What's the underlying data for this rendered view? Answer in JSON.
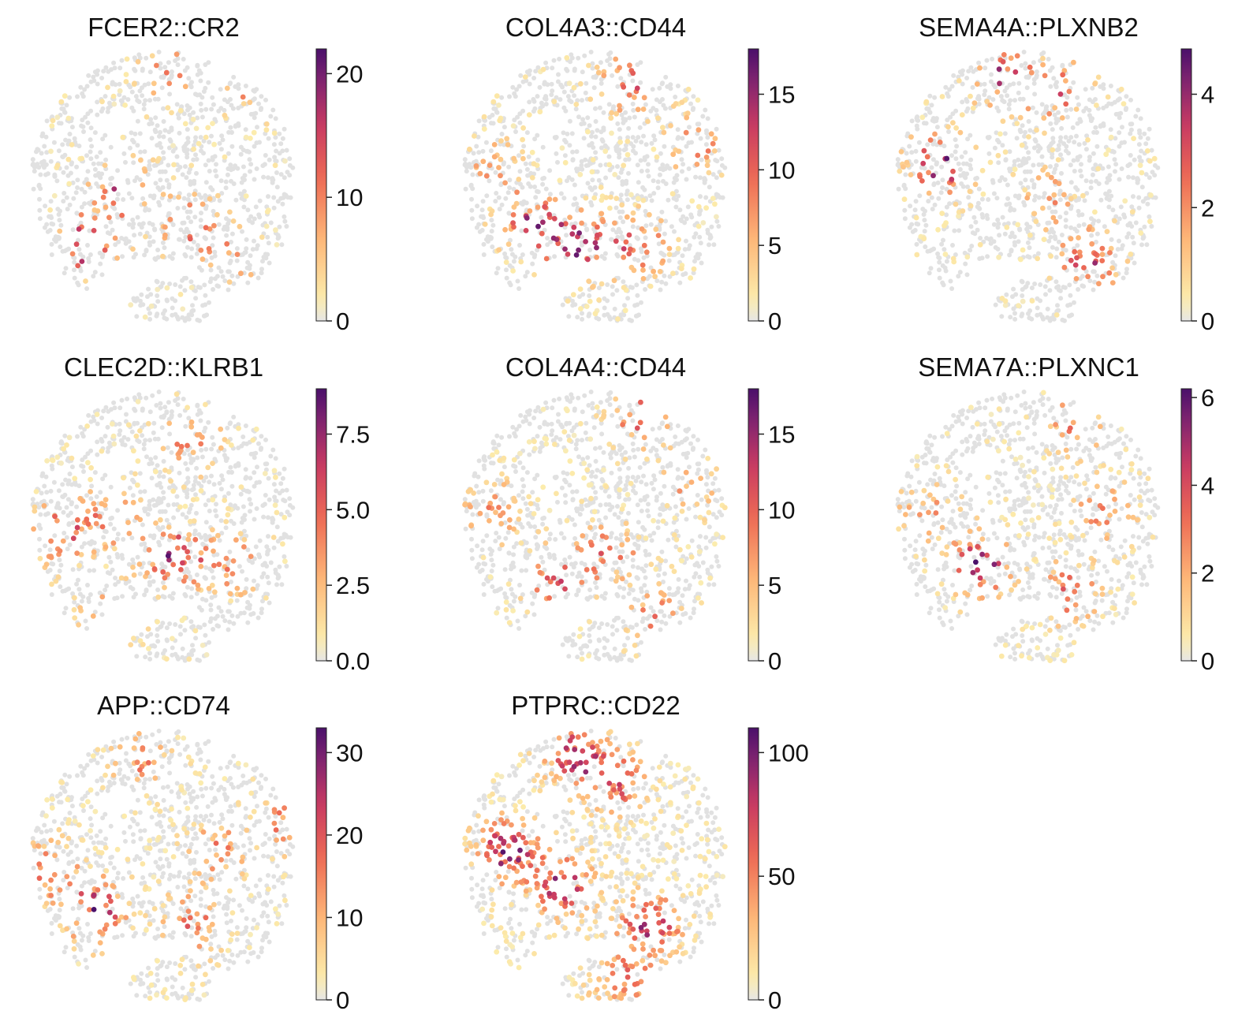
{
  "figure": {
    "background": "#ffffff",
    "background_spot_color": "#e1e1e1"
  },
  "chart_data": [
    {
      "type": "scatter",
      "title": "FCER2::CR2",
      "color_scale": {
        "cmap": "magma_r",
        "vmin": 0,
        "vmax": 22,
        "ticks": [
          0,
          10,
          20
        ],
        "tick_labels": [
          "0",
          "10",
          "20"
        ]
      },
      "hotspots": [
        {
          "x": -0.55,
          "y": -0.45,
          "weight": 1.0
        },
        {
          "x": -0.3,
          "y": -0.05,
          "weight": 0.8
        },
        {
          "x": 0.2,
          "y": -0.3,
          "weight": 0.7
        },
        {
          "x": 0.05,
          "y": 0.85,
          "weight": 0.5
        },
        {
          "x": 0.65,
          "y": 0.75,
          "weight": 0.5
        },
        {
          "x": 0.5,
          "y": -0.55,
          "weight": 0.4
        }
      ],
      "density": 0.3,
      "seed": 11
    },
    {
      "type": "scatter",
      "title": "COL4A3::CD44",
      "color_scale": {
        "cmap": "magma_r",
        "vmin": 0,
        "vmax": 18,
        "ticks": [
          0,
          5,
          10,
          15
        ],
        "tick_labels": [
          "0",
          "5",
          "10",
          "15"
        ]
      },
      "hotspots": [
        {
          "x": -0.45,
          "y": -0.3,
          "weight": 0.9
        },
        {
          "x": -0.1,
          "y": -0.45,
          "weight": 1.0
        },
        {
          "x": 0.3,
          "y": -0.45,
          "weight": 0.7
        },
        {
          "x": 0.25,
          "y": 0.75,
          "weight": 0.7
        },
        {
          "x": 0.75,
          "y": 0.3,
          "weight": 0.5
        },
        {
          "x": -0.75,
          "y": 0.1,
          "weight": 0.5
        }
      ],
      "density": 0.45,
      "seed": 23
    },
    {
      "type": "scatter",
      "title": "SEMA4A::PLXNB2",
      "color_scale": {
        "cmap": "magma_r",
        "vmin": 0,
        "vmax": 4.8,
        "ticks": [
          0,
          2,
          4
        ],
        "tick_labels": [
          "0",
          "2",
          "4"
        ]
      },
      "hotspots": [
        {
          "x": -0.65,
          "y": 0.15,
          "weight": 1.0
        },
        {
          "x": -0.2,
          "y": 0.8,
          "weight": 0.8
        },
        {
          "x": 0.2,
          "y": 0.7,
          "weight": 0.7
        },
        {
          "x": 0.45,
          "y": -0.55,
          "weight": 0.8
        },
        {
          "x": 0.15,
          "y": -0.1,
          "weight": 0.4
        }
      ],
      "density": 0.35,
      "seed": 37
    },
    {
      "type": "scatter",
      "title": "CLEC2D::KLRB1",
      "color_scale": {
        "cmap": "magma_r",
        "vmin": 0,
        "vmax": 9,
        "ticks": [
          0,
          2.5,
          5,
          7.5
        ],
        "tick_labels": [
          "0.0",
          "2.5",
          "5.0",
          "7.5"
        ]
      },
      "hotspots": [
        {
          "x": 0.1,
          "y": -0.25,
          "weight": 1.0
        },
        {
          "x": -0.75,
          "y": -0.05,
          "weight": 0.7
        },
        {
          "x": -0.35,
          "y": 0.05,
          "weight": 0.6
        },
        {
          "x": 0.2,
          "y": 0.6,
          "weight": 0.5
        },
        {
          "x": 0.55,
          "y": -0.3,
          "weight": 0.5
        },
        {
          "x": -0.4,
          "y": -0.65,
          "weight": 0.4
        }
      ],
      "density": 0.45,
      "seed": 41
    },
    {
      "type": "scatter",
      "title": "COL4A4::CD44",
      "color_scale": {
        "cmap": "magma_r",
        "vmin": 0,
        "vmax": 18,
        "ticks": [
          0,
          5,
          10,
          15
        ],
        "tick_labels": [
          "0",
          "5",
          "10",
          "15"
        ]
      },
      "hotspots": [
        {
          "x": -0.3,
          "y": -0.4,
          "weight": 0.8
        },
        {
          "x": 0.35,
          "y": 0.8,
          "weight": 0.7
        },
        {
          "x": 0.1,
          "y": -0.2,
          "weight": 0.6
        },
        {
          "x": -0.75,
          "y": 0.1,
          "weight": 0.5
        },
        {
          "x": 0.45,
          "y": -0.65,
          "weight": 0.5
        },
        {
          "x": 0.7,
          "y": 0.3,
          "weight": 0.4
        }
      ],
      "density": 0.45,
      "seed": 53
    },
    {
      "type": "scatter",
      "title": "SEMA7A::PLXNC1",
      "color_scale": {
        "cmap": "magma_r",
        "vmin": 0,
        "vmax": 6.2,
        "ticks": [
          0,
          2,
          4,
          6
        ],
        "tick_labels": [
          "0",
          "2",
          "4",
          "6"
        ]
      },
      "hotspots": [
        {
          "x": -0.35,
          "y": -0.3,
          "weight": 1.0
        },
        {
          "x": 0.3,
          "y": -0.5,
          "weight": 0.6
        },
        {
          "x": 0.35,
          "y": 0.75,
          "weight": 0.5
        },
        {
          "x": 0.55,
          "y": 0.1,
          "weight": 0.5
        },
        {
          "x": -0.75,
          "y": 0.1,
          "weight": 0.4
        }
      ],
      "density": 0.4,
      "seed": 67
    },
    {
      "type": "scatter",
      "title": "APP::CD74",
      "color_scale": {
        "cmap": "magma_r",
        "vmin": 0,
        "vmax": 33,
        "ticks": [
          0,
          10,
          20,
          30
        ],
        "tick_labels": [
          "0",
          "10",
          "20",
          "30"
        ]
      },
      "hotspots": [
        {
          "x": -0.5,
          "y": -0.35,
          "weight": 1.0
        },
        {
          "x": -0.85,
          "y": -0.05,
          "weight": 0.6
        },
        {
          "x": 0.2,
          "y": -0.45,
          "weight": 0.6
        },
        {
          "x": 0.4,
          "y": 0.1,
          "weight": 0.5
        },
        {
          "x": -0.15,
          "y": 0.75,
          "weight": 0.5
        },
        {
          "x": 0.9,
          "y": 0.3,
          "weight": 0.5
        }
      ],
      "density": 0.55,
      "seed": 79
    },
    {
      "type": "scatter",
      "title": "PTPRC::CD22",
      "color_scale": {
        "cmap": "magma_r",
        "vmin": 0,
        "vmax": 110,
        "ticks": [
          0,
          50,
          100
        ],
        "tick_labels": [
          "0",
          "50",
          "100"
        ]
      },
      "hotspots": [
        {
          "x": -0.65,
          "y": 0.1,
          "weight": 1.0
        },
        {
          "x": -0.25,
          "y": -0.15,
          "weight": 0.9
        },
        {
          "x": -0.15,
          "y": 0.8,
          "weight": 0.9
        },
        {
          "x": 0.4,
          "y": -0.45,
          "weight": 0.9
        },
        {
          "x": 0.15,
          "y": 0.6,
          "weight": 0.7
        },
        {
          "x": 0.2,
          "y": -0.85,
          "weight": 0.6
        }
      ],
      "density": 0.85,
      "seed": 97
    }
  ]
}
